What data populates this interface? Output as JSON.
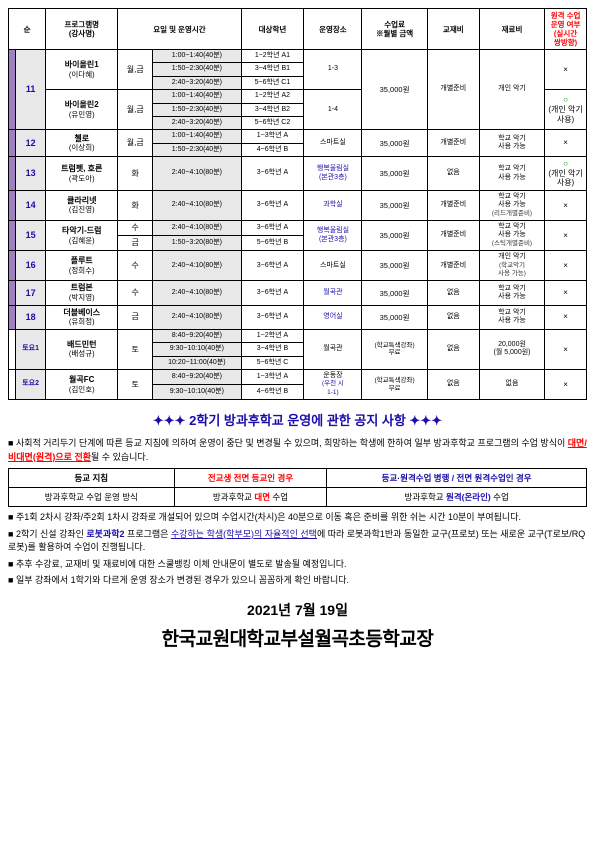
{
  "headers": {
    "num": "순",
    "prog": "프로그램명\n(강사명)",
    "daytime": "요일 및 운영시간",
    "target": "대상학년",
    "place": "운영장소",
    "fee": "수업료\n※월별 금액",
    "book": "교재비",
    "material": "재료비",
    "last": "원격 수업\n운영 여부\n(실시간\n쌍방향)"
  },
  "r11": {
    "num": "11",
    "p1": {
      "name": "바이올린1",
      "teacher": "(이다혜)"
    },
    "p2": {
      "name": "바이올린2",
      "teacher": "(유민영)"
    },
    "day": "월,금",
    "t1": "1:00~1:40(40분)",
    "tg1": "1~2학년 A1",
    "t2": "1:50~2:30(40분)",
    "tg2": "3~4학년 B1",
    "t3": "2:40~3:20(40분)",
    "tg3": "5~6학년 C1",
    "t4": "1:00~1:40(40분)",
    "tg4": "1~2학년 A2",
    "t5": "1:50~2:30(40분)",
    "tg5": "3~4학년 B2",
    "t6": "2:40~3:20(40분)",
    "tg6": "5~6학년 C2",
    "pl1": "1-3",
    "pl2": "1-4",
    "fee": "35,000원",
    "book": "개별준비",
    "mat": "개인 악기",
    "last1": "×",
    "last2": "○",
    "last2note": "(개인 악기\n사용)"
  },
  "r12": {
    "num": "12",
    "name": "첼로",
    "teacher": "(이상희)",
    "day": "월,금",
    "t1": "1:00~1:40(40분)",
    "tg1": "1~3학년 A",
    "t2": "1:50~2:30(40분)",
    "tg2": "4~6학년 B",
    "place": "스마트실",
    "fee": "35,000원",
    "book": "개별준비",
    "mat": "학교 악기\n사용 가능",
    "last": "×"
  },
  "r13": {
    "num": "13",
    "name": "트럼펫, 호른",
    "teacher": "(곽도아)",
    "day": "화",
    "t1": "2:40~4:10(80분)",
    "tg1": "3~6학년 A",
    "place": "행복울림실\n(본관3층)",
    "fee": "35,000원",
    "book": "없음",
    "mat": "학교 악기\n사용 가능",
    "last": "○",
    "lastnote": "(개인 악기\n사용)"
  },
  "r14": {
    "num": "14",
    "name": "클라리넷",
    "teacher": "(김진영)",
    "day": "화",
    "t1": "2:40~4:10(80분)",
    "tg1": "3~6학년 A",
    "place": "과학실",
    "fee": "35,000원",
    "book": "개별준비",
    "mat": "학교 악기\n사용 가능",
    "matnote": "(리드개별준비)",
    "last": "×"
  },
  "r15": {
    "num": "15",
    "name": "타악기-드럼",
    "teacher": "(김혜윤)",
    "day1": "수",
    "t1": "2:40~4:10(80분)",
    "tg1": "3~6학년 A",
    "day2": "금",
    "t2": "1:50~3:20(80분)",
    "tg2": "5~6학년 B",
    "place": "행복울림실\n(본관3층)",
    "fee": "35,000원",
    "book": "개별준비",
    "mat": "학교 악기\n사용 가능",
    "matnote": "(스틱개별준비)",
    "last": "×"
  },
  "r16": {
    "num": "16",
    "name": "플루트",
    "teacher": "(정희수)",
    "day": "수",
    "t1": "2:40~4:10(80분)",
    "tg1": "3~6학년 A",
    "place": "스마트실",
    "fee": "35,000원",
    "book": "개별준비",
    "mat": "개인 악기",
    "matnote": "(학교악기\n사용 가능)",
    "last": "×"
  },
  "r17": {
    "num": "17",
    "name": "트럼본",
    "teacher": "(박지영)",
    "day": "수",
    "t1": "2:40~4:10(80분)",
    "tg1": "3~6학년 A",
    "place": "월곡관",
    "fee": "35,000원",
    "book": "없음",
    "mat": "학교 악기\n사용 가능",
    "last": "×"
  },
  "r18": {
    "num": "18",
    "name": "더블베이스",
    "teacher": "(유희정)",
    "day": "금",
    "t1": "2:40~4:10(80분)",
    "tg1": "3~6학년 A",
    "place": "영어실",
    "fee": "35,000원",
    "book": "없음",
    "mat": "학교 악기\n사용 가능",
    "last": "×"
  },
  "sat1": {
    "num": "토요1",
    "name": "배드민턴",
    "teacher": "(배성규)",
    "day": "토",
    "t1": "8:40~9:20(40분)",
    "tg1": "1~2학년 A",
    "t2": "9:30~10:10(40분)",
    "tg2": "3~4학년 B",
    "t3": "10:20~11:00(40분)",
    "tg3": "5~6학년 C",
    "place": "월곡관",
    "fee": "(학교특색강좌)\n무료",
    "book": "없음",
    "mat": "20,000원\n(월 5,000원)",
    "last": "×"
  },
  "sat2": {
    "num": "토요2",
    "name": "월곡FC",
    "teacher": "(김인호)",
    "day": "토",
    "t1": "8:40~9:20(40분)",
    "tg1": "1~3학년 A",
    "t2": "9:30~10:10(40분)",
    "tg2": "4~6학년 B",
    "place": "운동장",
    "placenote": "(우천 시\n1-1)",
    "fee": "(학교특색강좌)\n무료",
    "book": "없음",
    "mat": "없음",
    "last": "×"
  },
  "notice": {
    "title": "✦✦✦ 2학기 방과후학교 운영에 관한 공지 사항 ✦✦✦",
    "b1a": "사회적 거리두기 단계에 따른 등교 지침에 의하여 운영이 중단 및 변경될 수 있으며, 희망하는 학생에 한하여 일부 방과후학교 프로그램의 수업 방식이 ",
    "b1b": "대면/비대면(원격)으로 전환",
    "b1c": "될 수 있습니다.",
    "b2": "주1회 2차시 강좌/주2회 1차시 강좌로 개설되어 있으며 수업시간(차시)은 40분으로 이동 혹은 준비를 위한 쉬는 시간 10분이 부여됩니다.",
    "b3a": "2학기 신설 강좌인 ",
    "b3b": "로봇과학2",
    "b3c": " 프로그램은 ",
    "b3d": "수강하는 학생(학부모)의 자율적인 선택",
    "b3e": "에 따라 로봇과학1반과 동일한 교구(프로보) 또는 새로운 교구(T로보/RQ로봇)를 활용하여 수업이 진행됩니다.",
    "b4": "추후 수강료, 교재비 및 재료비에 대한 스쿨뱅킹 이체 안내문이 별도로 발송될 예정입니다.",
    "b5": "일부 강좌에서 1학기와 다르게 운영 장소가 변경된 경우가 있으니 꼼꼼하게 확인 바랍니다."
  },
  "policy": {
    "h1": "등교 지침",
    "h2": "전교생 전면 등교인 경우",
    "h3": "등교·원격수업 병행 / 전면 원격수업인 경우",
    "r1": "방과후학교 수업 운영 방식",
    "r2a": "방과후학교 ",
    "r2b": "대면",
    "r2c": " 수업",
    "r3a": "방과후학교 ",
    "r3b": "원격(온라인)",
    "r3c": " 수업"
  },
  "footer": {
    "date": "2021년 7월 19일",
    "school": "한국교원대학교부설월곡초등학교장"
  }
}
